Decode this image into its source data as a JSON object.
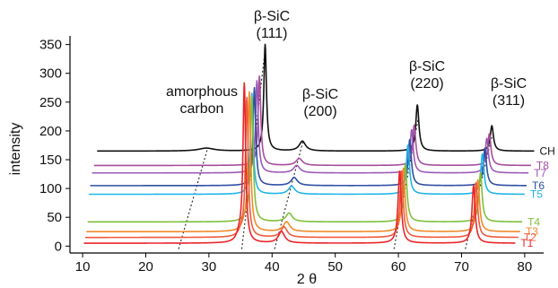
{
  "chart_data": {
    "type": "line",
    "xlabel": "2 θ",
    "ylabel": "intensity",
    "xlim": [
      8,
      83
    ],
    "ylim": [
      -12,
      365
    ],
    "x_ticks": [
      10,
      20,
      30,
      40,
      50,
      60,
      70,
      80
    ],
    "y_ticks": [
      0,
      50,
      100,
      150,
      200,
      250,
      300,
      350
    ],
    "annotations": [
      {
        "text": [
          "amorphous",
          "carbon"
        ]
      },
      {
        "text": [
          "β-SiC",
          "(111)"
        ]
      },
      {
        "text": [
          "β-SiC",
          "(200)"
        ]
      },
      {
        "text": [
          "β-SiC",
          "(220)"
        ]
      },
      {
        "text": [
          "β-SiC",
          "(311)"
        ]
      }
    ],
    "series": [
      {
        "name": "T1",
        "color": "#e8252a",
        "baseline": 5,
        "x_start": 10.2,
        "x_end": 78.5,
        "peaks": [
          [
            34.8,
            12,
            0.5
          ],
          [
            35.6,
            275,
            0.25
          ],
          [
            41.5,
            20,
            0.6
          ],
          [
            60.2,
            125,
            0.3
          ],
          [
            71.9,
            100,
            0.3
          ]
        ]
      },
      {
        "name": "T2",
        "color": "#f05a3a",
        "baseline": 15,
        "x_start": 10.4,
        "x_end": 79.0,
        "peaks": [
          [
            35.2,
            10,
            0.5
          ],
          [
            36.0,
            240,
            0.25
          ],
          [
            41.9,
            18,
            0.6
          ],
          [
            60.5,
            115,
            0.3
          ],
          [
            72.3,
            95,
            0.3
          ]
        ]
      },
      {
        "name": "T3",
        "color": "#f08a2c",
        "baseline": 25,
        "x_start": 10.6,
        "x_end": 79.3,
        "peaks": [
          [
            35.6,
            10,
            0.5
          ],
          [
            36.4,
            240,
            0.25
          ],
          [
            42.3,
            17,
            0.6
          ],
          [
            60.8,
            110,
            0.3
          ],
          [
            72.6,
            90,
            0.3
          ]
        ]
      },
      {
        "name": "T4",
        "color": "#7fbf3b",
        "baseline": 42,
        "x_start": 10.8,
        "x_end": 79.6,
        "peaks": [
          [
            36.0,
            10,
            0.5
          ],
          [
            36.8,
            215,
            0.25
          ],
          [
            42.7,
            15,
            0.6
          ],
          [
            61.1,
            100,
            0.3
          ],
          [
            73.0,
            85,
            0.3
          ]
        ]
      },
      {
        "name": "T5",
        "color": "#1fb5e8",
        "baseline": 90,
        "x_start": 11.0,
        "x_end": 80.0,
        "peaks": [
          [
            36.8,
            175,
            0.25
          ],
          [
            43.1,
            14,
            0.6
          ],
          [
            61.5,
            85,
            0.3
          ],
          [
            73.3,
            70,
            0.3
          ]
        ]
      },
      {
        "name": "T6",
        "color": "#2f4ea3",
        "baseline": 105,
        "x_start": 11.2,
        "x_end": 80.3,
        "peaks": [
          [
            37.2,
            170,
            0.25
          ],
          [
            43.5,
            14,
            0.6
          ],
          [
            61.8,
            80,
            0.3
          ],
          [
            73.7,
            65,
            0.3
          ]
        ]
      },
      {
        "name": "T7",
        "color": "#9b59b6",
        "baseline": 127,
        "x_start": 11.5,
        "x_end": 80.6,
        "peaks": [
          [
            37.6,
            160,
            0.25
          ],
          [
            43.9,
            13,
            0.6
          ],
          [
            62.1,
            75,
            0.3
          ],
          [
            74.0,
            60,
            0.3
          ]
        ]
      },
      {
        "name": "T8",
        "color": "#a64d9d",
        "baseline": 140,
        "x_start": 11.8,
        "x_end": 81.0,
        "peaks": [
          [
            38.0,
            155,
            0.25
          ],
          [
            44.3,
            12,
            0.6
          ],
          [
            62.5,
            70,
            0.3
          ],
          [
            74.4,
            55,
            0.3
          ]
        ]
      },
      {
        "name": "CH",
        "color": "#111111",
        "baseline": 165,
        "x_start": 12.3,
        "x_end": 81.5,
        "peaks": [
          [
            29.6,
            5,
            1.5
          ],
          [
            38.9,
            185,
            0.25
          ],
          [
            44.8,
            17,
            0.6
          ],
          [
            63.0,
            80,
            0.3
          ],
          [
            74.8,
            44,
            0.3
          ]
        ]
      }
    ]
  }
}
